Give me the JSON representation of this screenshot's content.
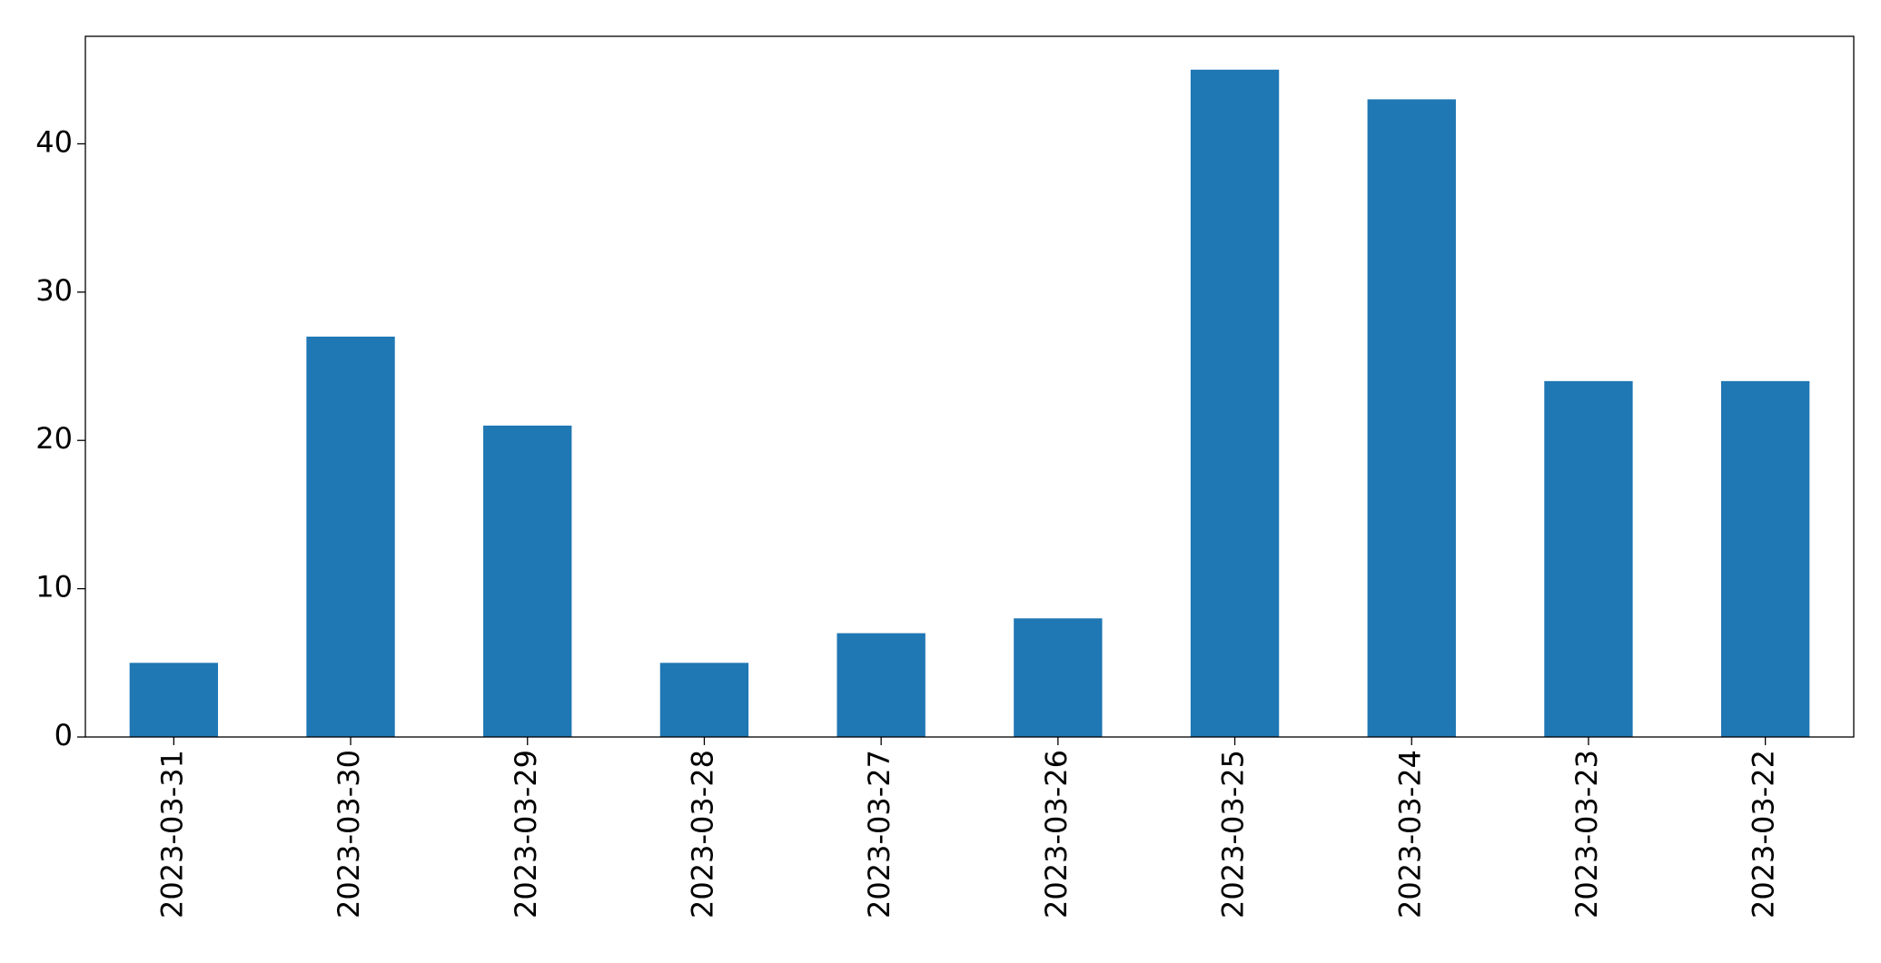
{
  "chart_data": {
    "type": "bar",
    "categories": [
      "2023-03-31",
      "2023-03-30",
      "2023-03-29",
      "2023-03-28",
      "2023-03-27",
      "2023-03-26",
      "2023-03-25",
      "2023-03-24",
      "2023-03-23",
      "2023-03-22"
    ],
    "values": [
      5,
      27,
      21,
      5,
      7,
      8,
      45,
      43,
      24,
      24
    ],
    "color": "#1f77b4",
    "ylim": [
      0,
      47.25
    ],
    "yticks": [
      0,
      10,
      20,
      30,
      40
    ],
    "grid": false
  }
}
